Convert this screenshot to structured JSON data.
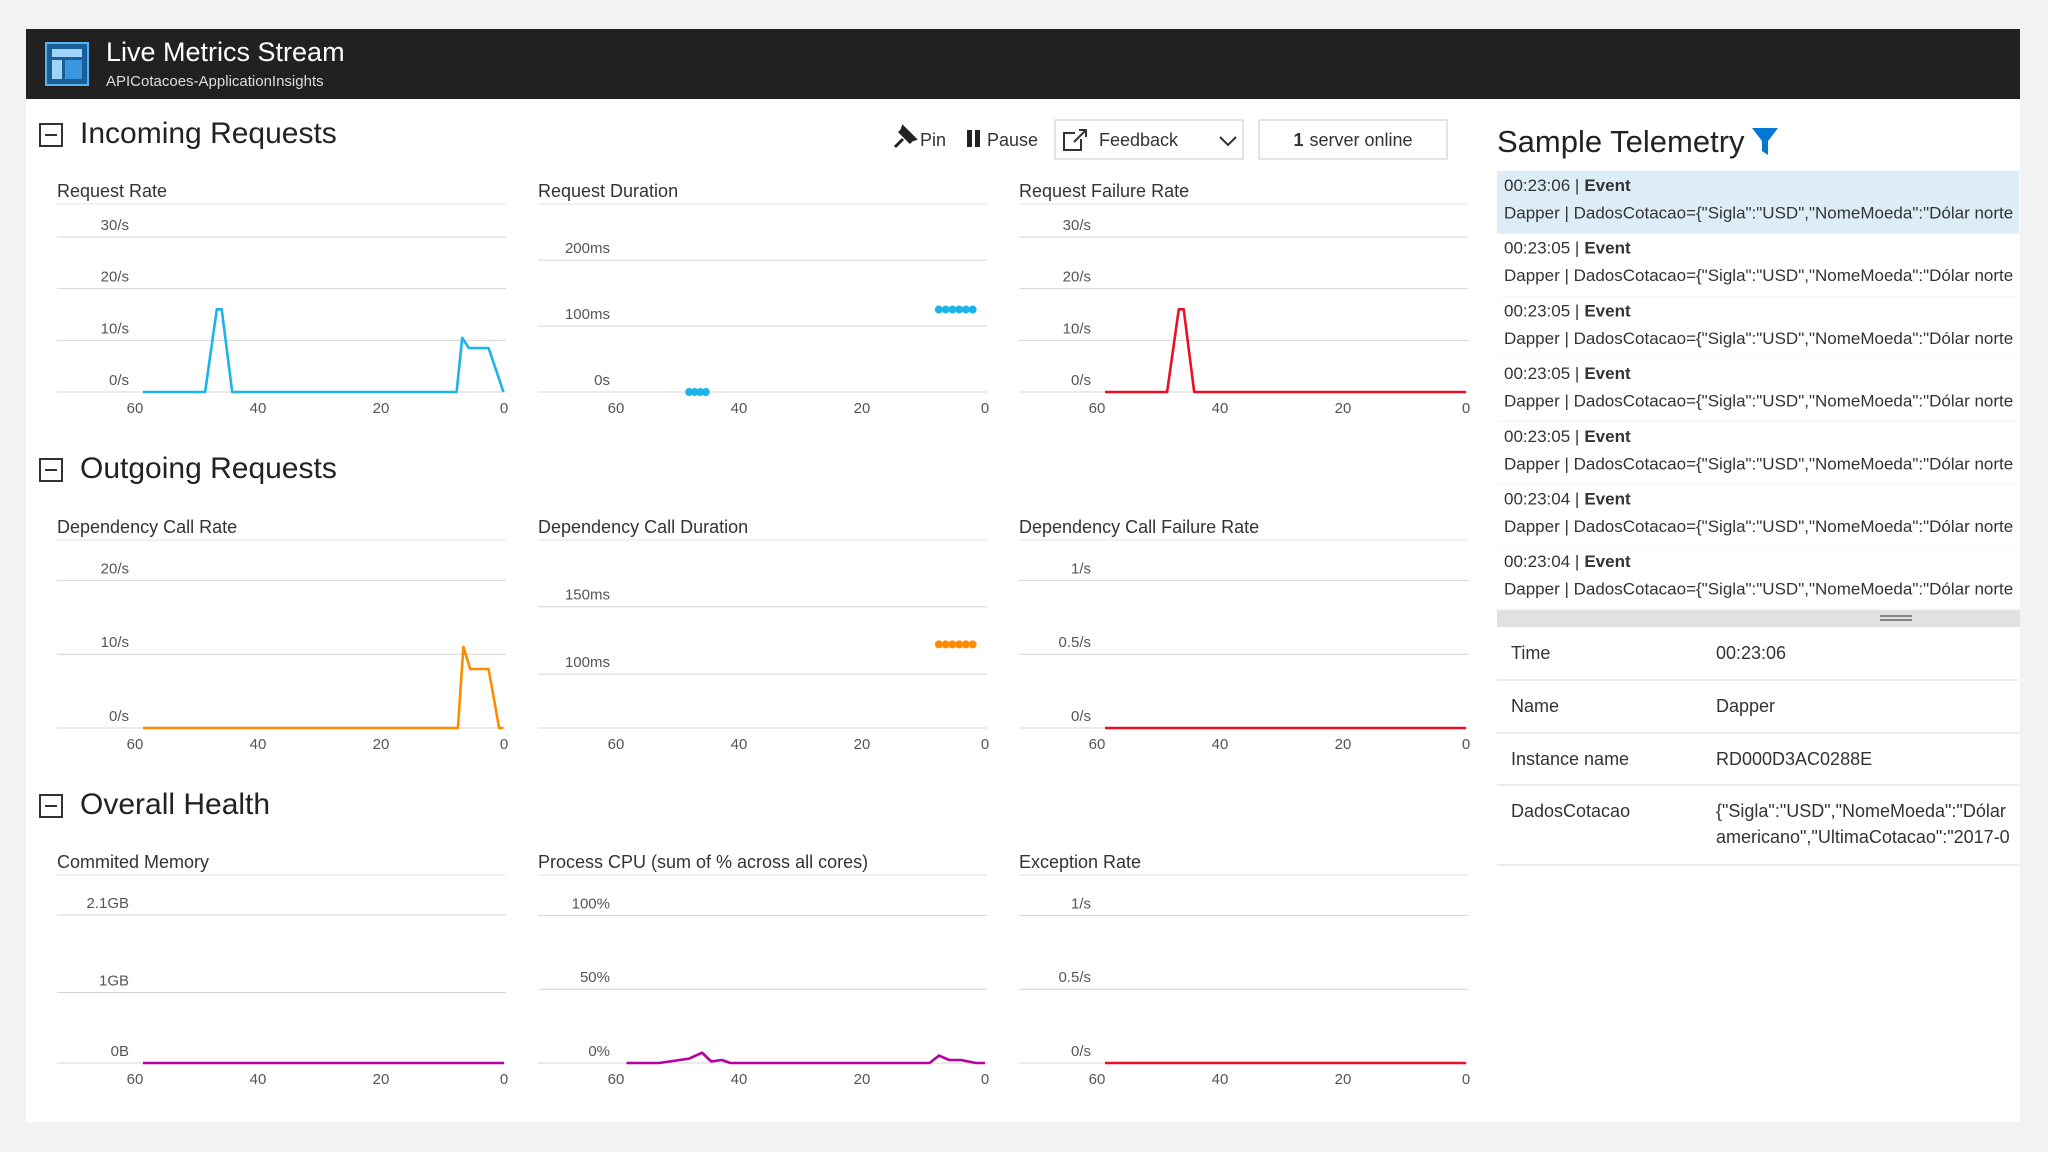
{
  "header": {
    "title": "Live Metrics Stream",
    "subtitle": "APICotacoes-ApplicationInsights"
  },
  "toolbar": {
    "pin": "Pin",
    "pause": "Pause",
    "feedback": "Feedback",
    "server_count": "1",
    "server_label": "server online"
  },
  "sections": [
    {
      "title": "Incoming Requests",
      "charts": [
        {
          "type": "line",
          "title": "Request Rate",
          "xlim": [
            60,
            0
          ],
          "xticks": [
            60,
            40,
            20,
            0
          ],
          "ylim": [
            0,
            30
          ],
          "yticks": [
            {
              "value": 0,
              "label": "0/s"
            },
            {
              "value": 10,
              "label": "10/s"
            },
            {
              "value": 20,
              "label": "20/s"
            },
            {
              "value": 30,
              "label": "30/s"
            }
          ],
          "grid": true,
          "series": [
            {
              "color": "#1cb4e8",
              "x": [
                58.7,
                48.6,
                46.7,
                45.9,
                44.2,
                7.7,
                6.8,
                5.7,
                2.5,
                0.8,
                0.1
              ],
              "values": [
                0,
                0,
                16,
                16,
                0,
                0,
                10.5,
                8.5,
                8.5,
                2.5,
                0
              ]
            }
          ]
        },
        {
          "type": "scatter",
          "title": "Request Duration",
          "xlim": [
            60,
            0
          ],
          "xticks": [
            60,
            40,
            20,
            0
          ],
          "ylim": [
            0,
            235
          ],
          "yticks": [
            {
              "value": 0,
              "label": "0s"
            },
            {
              "value": 100,
              "label": "100ms"
            },
            {
              "value": 200,
              "label": "200ms"
            }
          ],
          "grid": true,
          "series": [
            {
              "color": "#1cb4e8",
              "x": [
                48.1,
                47.2,
                46.3,
                45.4,
                7.5,
                6.4,
                5.3,
                4.2,
                3.1,
                2.0
              ],
              "values": [
                0,
                0,
                0,
                0,
                125,
                125,
                125,
                125,
                125,
                125
              ]
            }
          ]
        },
        {
          "type": "line",
          "title": "Request Failure Rate",
          "xlim": [
            60,
            0
          ],
          "xticks": [
            60,
            40,
            20,
            0
          ],
          "ylim": [
            0,
            30
          ],
          "yticks": [
            {
              "value": 0,
              "label": "0/s"
            },
            {
              "value": 10,
              "label": "10/s"
            },
            {
              "value": 20,
              "label": "20/s"
            },
            {
              "value": 30,
              "label": "30/s"
            }
          ],
          "grid": true,
          "series": [
            {
              "color": "#e81123",
              "x": [
                58.7,
                48.6,
                46.7,
                45.9,
                44.2,
                0
              ],
              "values": [
                0,
                0,
                16,
                16,
                0,
                0
              ]
            }
          ]
        }
      ]
    },
    {
      "title": "Outgoing Requests",
      "charts": [
        {
          "type": "line",
          "title": "Dependency Call Rate",
          "xlim": [
            60,
            0
          ],
          "xticks": [
            60,
            40,
            20,
            0
          ],
          "ylim": [
            0,
            21
          ],
          "yticks": [
            {
              "value": 0,
              "label": "0/s"
            },
            {
              "value": 10,
              "label": "10/s"
            },
            {
              "value": 20,
              "label": "20/s"
            }
          ],
          "grid": true,
          "series": [
            {
              "color": "#ff8c00",
              "x": [
                58.7,
                7.5,
                6.6,
                5.5,
                2.5,
                0.8,
                0.1
              ],
              "values": [
                0,
                0,
                11,
                8,
                8,
                0,
                0
              ]
            }
          ]
        },
        {
          "type": "scatter",
          "title": "Dependency Call Duration",
          "xlim": [
            60,
            0
          ],
          "xticks": [
            60,
            40,
            20,
            0
          ],
          "ylim": [
            60,
            175
          ],
          "yticks": [
            {
              "value": 100,
              "label": "100ms"
            },
            {
              "value": 150,
              "label": "150ms"
            }
          ],
          "grid": true,
          "series": [
            {
              "color": "#ff8c00",
              "x": [
                7.5,
                6.4,
                5.3,
                4.2,
                3.1,
                2.0
              ],
              "values": [
                122,
                122,
                122,
                122,
                122,
                122
              ]
            }
          ]
        },
        {
          "type": "line",
          "title": "Dependency Call Failure Rate",
          "xlim": [
            60,
            0
          ],
          "xticks": [
            60,
            40,
            20,
            0
          ],
          "ylim": [
            0,
            1.05
          ],
          "yticks": [
            {
              "value": 0,
              "label": "0/s"
            },
            {
              "value": 0.5,
              "label": "0.5/s"
            },
            {
              "value": 1,
              "label": "1/s"
            }
          ],
          "grid": true,
          "series": [
            {
              "color": "#e81123",
              "x": [
                58.7,
                0
              ],
              "values": [
                0,
                0
              ]
            }
          ]
        }
      ]
    },
    {
      "title": "Overall Health",
      "charts": [
        {
          "type": "line",
          "title": "Commited Memory",
          "xlim": [
            60,
            0
          ],
          "xticks": [
            60,
            40,
            20,
            0
          ],
          "ylim": [
            0,
            2.2
          ],
          "yticks": [
            {
              "value": 0,
              "label": "0B"
            },
            {
              "value": 1,
              "label": "1GB"
            },
            {
              "value": 2.1,
              "label": "2.1GB"
            }
          ],
          "grid": true,
          "series": [
            {
              "color": "#b4009e",
              "x": [
                58.7,
                0
              ],
              "values": [
                0,
                0
              ]
            }
          ]
        },
        {
          "type": "line",
          "title": "Process CPU (sum of % across all cores)",
          "xlim": [
            60,
            0
          ],
          "xticks": [
            60,
            40,
            20,
            0
          ],
          "ylim": [
            0,
            105
          ],
          "yticks": [
            {
              "value": 0,
              "label": "0%"
            },
            {
              "value": 50,
              "label": "50%"
            },
            {
              "value": 100,
              "label": "100%"
            }
          ],
          "grid": true,
          "series": [
            {
              "color": "#b4009e",
              "x": [
                58.3,
                53,
                48.1,
                46,
                44.5,
                42.8,
                41.4,
                9,
                7.5,
                5.8,
                3.9,
                1.5,
                0
              ],
              "values": [
                0,
                0,
                3,
                7,
                1,
                2,
                0,
                0,
                5,
                2,
                2,
                0,
                0
              ]
            }
          ]
        },
        {
          "type": "line",
          "title": "Exception Rate",
          "xlim": [
            60,
            0
          ],
          "xticks": [
            60,
            40,
            20,
            0
          ],
          "ylim": [
            0,
            1.05
          ],
          "yticks": [
            {
              "value": 0,
              "label": "0/s"
            },
            {
              "value": 0.5,
              "label": "0.5/s"
            },
            {
              "value": 1,
              "label": "1/s"
            }
          ],
          "grid": true,
          "series": [
            {
              "color": "#e81123",
              "x": [
                58.7,
                0
              ],
              "values": [
                0,
                0
              ]
            }
          ]
        }
      ]
    }
  ],
  "telemetry": {
    "title": "Sample Telemetry",
    "items": [
      {
        "time": "00:23:06 |",
        "kind": "Event",
        "message": "Dapper | DadosCotacao={\"Sigla\":\"USD\",\"NomeMoeda\":\"Dólar norte"
      },
      {
        "time": "00:23:05 |",
        "kind": "Event",
        "message": "Dapper | DadosCotacao={\"Sigla\":\"USD\",\"NomeMoeda\":\"Dólar norte"
      },
      {
        "time": "00:23:05 |",
        "kind": "Event",
        "message": "Dapper | DadosCotacao={\"Sigla\":\"USD\",\"NomeMoeda\":\"Dólar norte"
      },
      {
        "time": "00:23:05 |",
        "kind": "Event",
        "message": "Dapper | DadosCotacao={\"Sigla\":\"USD\",\"NomeMoeda\":\"Dólar norte"
      },
      {
        "time": "00:23:05 |",
        "kind": "Event",
        "message": "Dapper | DadosCotacao={\"Sigla\":\"USD\",\"NomeMoeda\":\"Dólar norte"
      },
      {
        "time": "00:23:04 |",
        "kind": "Event",
        "message": "Dapper | DadosCotacao={\"Sigla\":\"USD\",\"NomeMoeda\":\"Dólar norte"
      },
      {
        "time": "00:23:04 |",
        "kind": "Event",
        "message": "Dapper | DadosCotacao={\"Sigla\":\"USD\",\"NomeMoeda\":\"Dólar norte"
      }
    ],
    "details": [
      {
        "key": "Time",
        "value": [
          "00:23:06"
        ]
      },
      {
        "key": "Name",
        "value": [
          "Dapper"
        ]
      },
      {
        "key": "Instance name",
        "value": [
          "RD000D3AC0288E"
        ]
      },
      {
        "key": "DadosCotacao",
        "value": [
          "{\"Sigla\":\"USD\",\"NomeMoeda\":\"Dólar",
          "americano\",\"UltimaCotacao\":\"2017-0"
        ]
      }
    ]
  }
}
